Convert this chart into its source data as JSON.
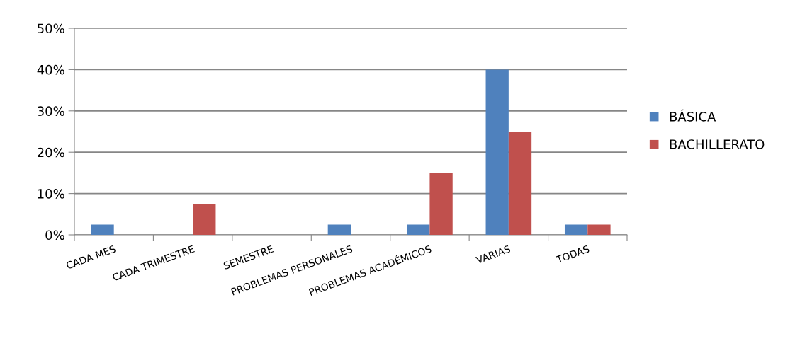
{
  "chart_data": {
    "type": "bar",
    "categories": [
      "CADA MES",
      "CADA TRIMESTRE",
      "SEMESTRE",
      "PROBLEMAS PERSONALES",
      "PROBLEMAS ACADÉMICOS",
      "VARIAS",
      "TODAS"
    ],
    "series": [
      {
        "name": "BÁSICA",
        "color": "#4f81bd",
        "values": [
          2.5,
          0,
          0,
          2.5,
          2.5,
          40,
          2.5
        ]
      },
      {
        "name": "BACHILLERATO",
        "color": "#c0504d",
        "values": [
          0,
          7.5,
          0,
          0,
          15,
          25,
          2.5
        ]
      }
    ],
    "ylim": [
      0,
      50
    ],
    "yticks": [
      {
        "value": 0,
        "label": "0%"
      },
      {
        "value": 10,
        "label": "10%"
      },
      {
        "value": 20,
        "label": "20%"
      },
      {
        "value": 30,
        "label": "30%"
      },
      {
        "value": 40,
        "label": "40%"
      },
      {
        "value": 50,
        "label": "50%"
      }
    ],
    "grid": "y",
    "legend": "right"
  }
}
